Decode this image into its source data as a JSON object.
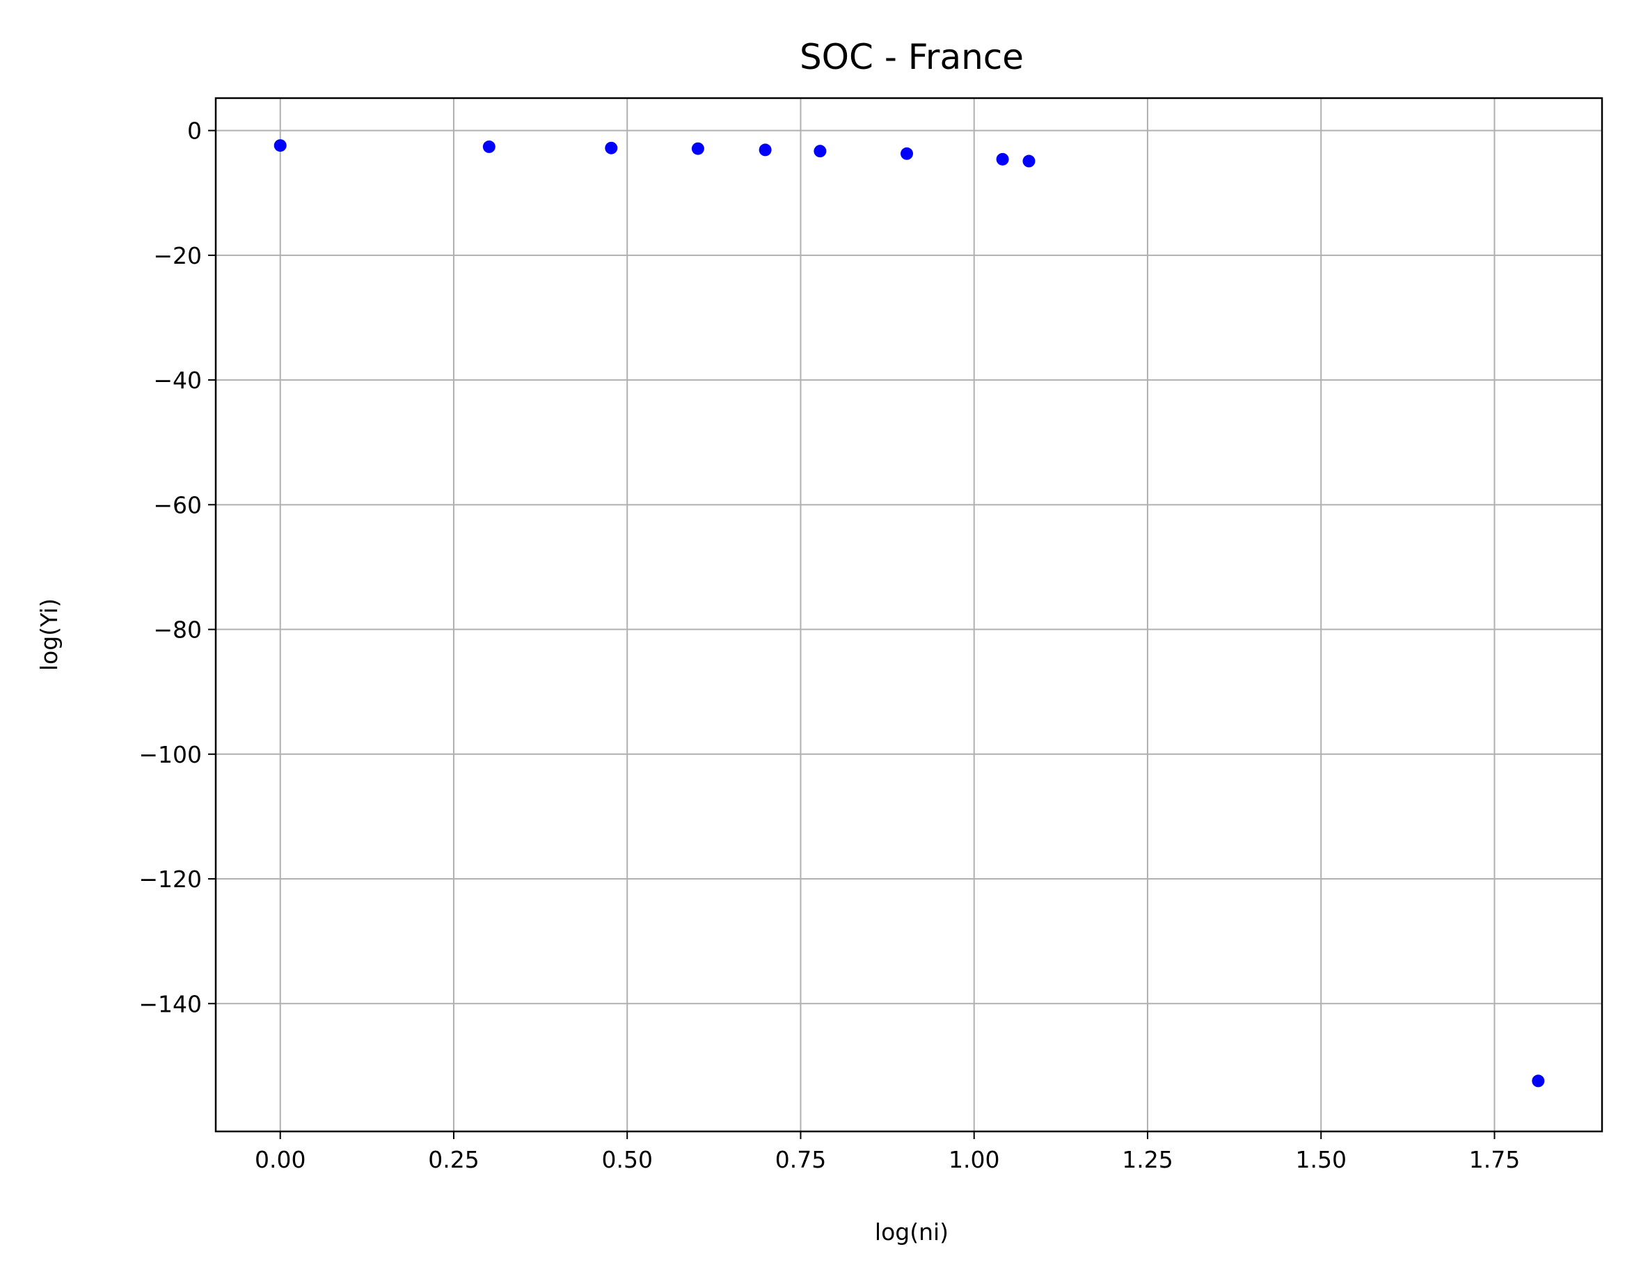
{
  "chart_data": {
    "type": "scatter",
    "title": "SOC - France",
    "xlabel": "log(ni)",
    "ylabel": "log(Yi)",
    "xlim": [
      -0.093,
      1.905
    ],
    "ylim": [
      -160.5,
      5.2
    ],
    "xticks": [
      0.0,
      0.25,
      0.5,
      0.75,
      1.0,
      1.25,
      1.5,
      1.75
    ],
    "xtick_labels": [
      "0.00",
      "0.25",
      "0.50",
      "0.75",
      "1.00",
      "1.25",
      "1.50",
      "1.75"
    ],
    "yticks": [
      0,
      -20,
      -40,
      -60,
      -80,
      -100,
      -120,
      -140
    ],
    "ytick_labels": [
      "0",
      "−20",
      "−40",
      "−60",
      "−80",
      "−100",
      "−120",
      "−140"
    ],
    "grid": true,
    "marker_color": "#0000ff",
    "series": [
      {
        "x": [
          0.0,
          0.301,
          0.477,
          0.602,
          0.699,
          0.778,
          0.903,
          1.041,
          1.079,
          1.813
        ],
        "y": [
          -2.4,
          -2.6,
          -2.8,
          -2.9,
          -3.1,
          -3.3,
          -3.7,
          -4.6,
          -4.9,
          -152.4
        ]
      }
    ]
  }
}
